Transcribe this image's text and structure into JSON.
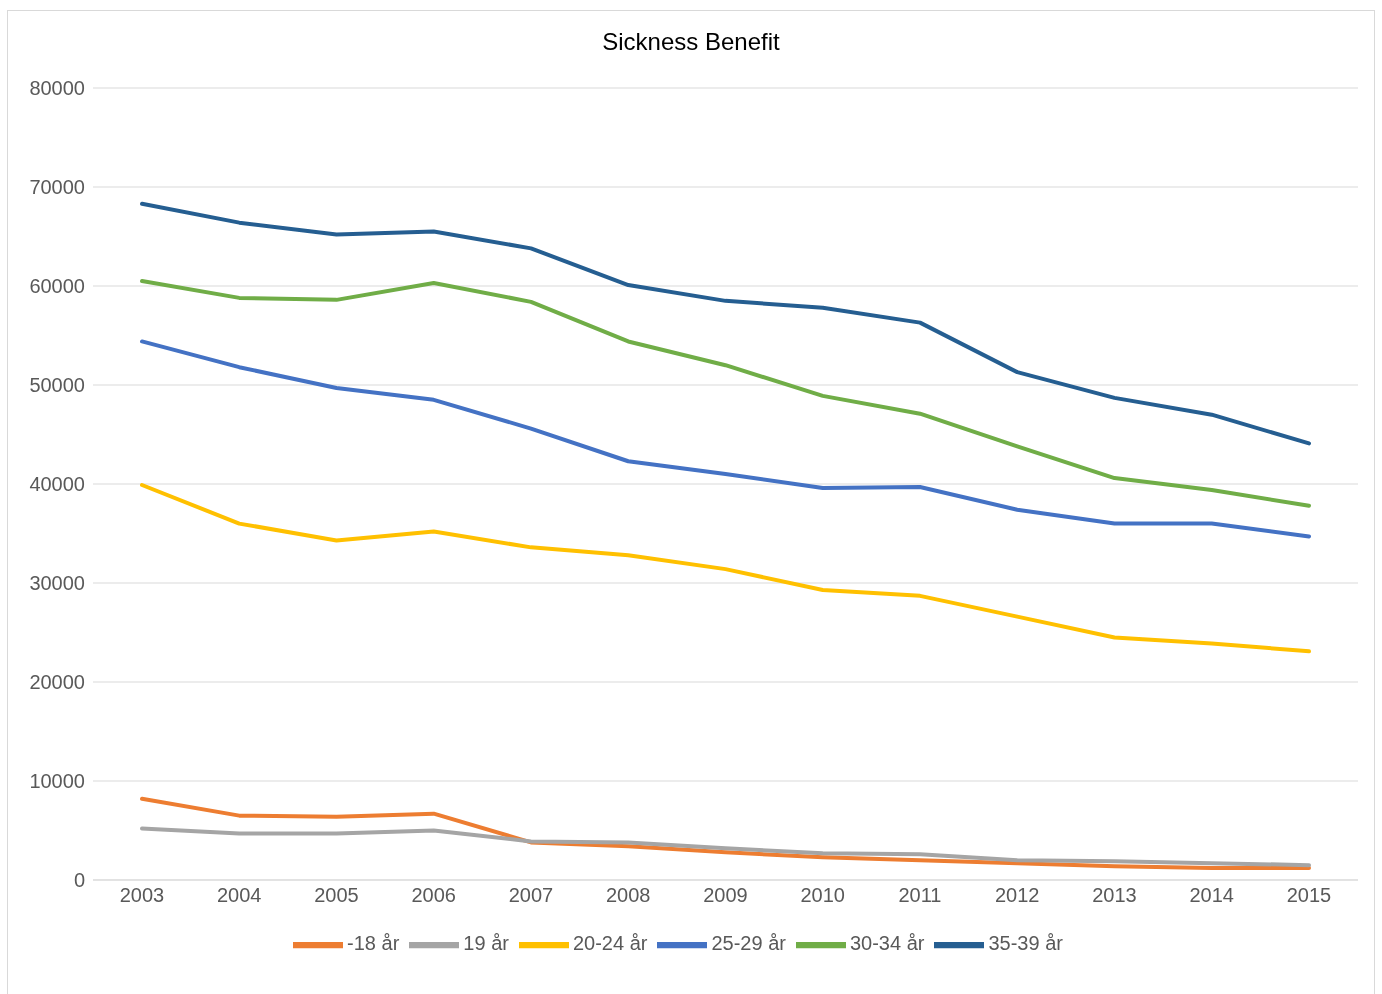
{
  "chart_data": {
    "type": "line",
    "title": "Sickness Benefit",
    "categories": [
      "2003",
      "2004",
      "2005",
      "2006",
      "2007",
      "2008",
      "2009",
      "2010",
      "2011",
      "2012",
      "2013",
      "2014",
      "2015"
    ],
    "series": [
      {
        "name": "-18 år",
        "color": "#ed7d31",
        "values": [
          8200,
          6500,
          6400,
          6700,
          3800,
          3400,
          2800,
          2300,
          2000,
          1700,
          1400,
          1200,
          1200
        ]
      },
      {
        "name": "19 år",
        "color": "#a5a5a5",
        "values": [
          5200,
          4700,
          4700,
          5000,
          3900,
          3800,
          3200,
          2700,
          2600,
          2000,
          1900,
          1700,
          1500
        ]
      },
      {
        "name": "20-24 år",
        "color": "#ffc000",
        "values": [
          39900,
          36000,
          34300,
          35200,
          33600,
          32800,
          31400,
          29300,
          28700,
          26600,
          24500,
          23900,
          23100
        ]
      },
      {
        "name": "25-29 år",
        "color": "#4472c4",
        "values": [
          54400,
          51800,
          49700,
          48500,
          45600,
          42300,
          41000,
          39600,
          39700,
          37400,
          36000,
          36000,
          34700
        ]
      },
      {
        "name": "30-34 år",
        "color": "#70ad47",
        "values": [
          60500,
          58800,
          58600,
          60300,
          58400,
          54400,
          52000,
          48900,
          47100,
          43800,
          40600,
          39400,
          37800
        ]
      },
      {
        "name": "35-39 år",
        "color": "#255e91",
        "values": [
          68300,
          66400,
          65200,
          65500,
          63800,
          60100,
          58500,
          57800,
          56300,
          51300,
          48700,
          47000,
          44100
        ]
      }
    ],
    "ylim": [
      0,
      80000
    ],
    "yticks": [
      0,
      10000,
      20000,
      30000,
      40000,
      50000,
      60000,
      70000,
      80000
    ],
    "grid": "y",
    "legend": "bottom",
    "marker": "none",
    "line_style": "solid"
  }
}
